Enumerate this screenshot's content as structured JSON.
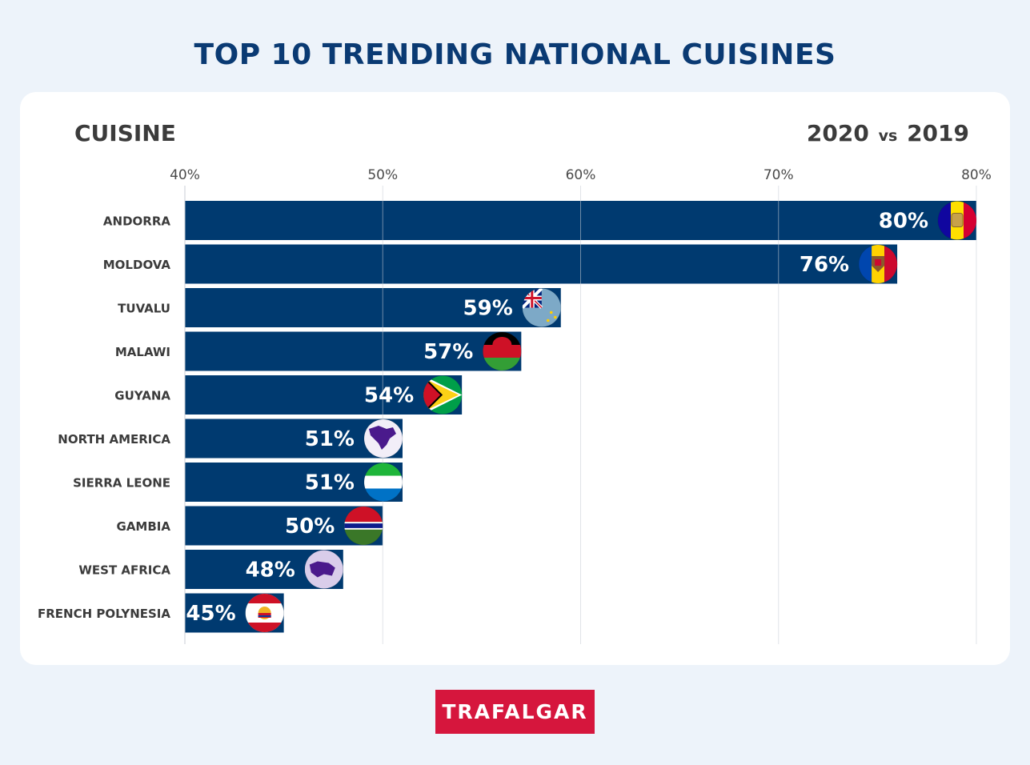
{
  "title": "TOP 10 TRENDING NATIONAL CUISINES",
  "left_header": "CUISINE",
  "right_header": {
    "year_a": "2020",
    "vs": "vs",
    "year_b": "2019"
  },
  "logo_text": "TRAFALGAR",
  "chart_data": {
    "type": "bar",
    "orientation": "horizontal",
    "xlim": [
      40,
      80
    ],
    "ticks": [
      40,
      50,
      60,
      70,
      80
    ],
    "tick_suffix": "%",
    "grid": true,
    "bar_color": "#003a70",
    "categories": [
      "ANDORRA",
      "MOLDOVA",
      "TUVALU",
      "MALAWI",
      "GUYANA",
      "NORTH AMERICA",
      "SIERRA LEONE",
      "GAMBIA",
      "WEST AFRICA",
      "FRENCH POLYNESIA"
    ],
    "values": [
      80,
      76,
      59,
      57,
      54,
      51,
      51,
      50,
      48,
      45
    ],
    "value_labels": [
      "80%",
      "76%",
      "59%",
      "57%",
      "54%",
      "51%",
      "51%",
      "50%",
      "48%",
      "45%"
    ],
    "flags": [
      "andorra-flag-icon",
      "moldova-flag-icon",
      "tuvalu-flag-icon",
      "malawi-flag-icon",
      "guyana-flag-icon",
      "north-america-map-icon",
      "sierra-leone-flag-icon",
      "gambia-flag-icon",
      "west-africa-map-icon",
      "french-polynesia-flag-icon"
    ]
  }
}
